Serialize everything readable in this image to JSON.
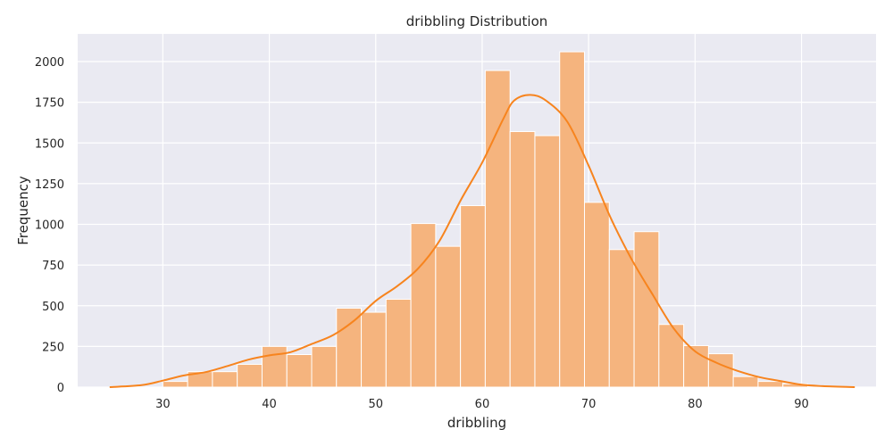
{
  "chart_data": {
    "type": "bar",
    "title": "dribbling Distribution",
    "xlabel": "dribbling",
    "ylabel": "Frequency",
    "xlim": [
      22,
      97
    ],
    "ylim": [
      0,
      2170
    ],
    "x_ticks": [
      30,
      40,
      50,
      60,
      70,
      80,
      90
    ],
    "y_ticks": [
      0,
      250,
      500,
      750,
      1000,
      1250,
      1500,
      1750,
      2000
    ],
    "grid": true,
    "bin_start": 30,
    "bin_width": 2.33,
    "values": [
      35,
      95,
      95,
      140,
      250,
      200,
      250,
      485,
      460,
      540,
      1005,
      865,
      1115,
      1945,
      1570,
      1545,
      2060,
      1135,
      845,
      955,
      385,
      255,
      205,
      65,
      35,
      20
    ],
    "kde": {
      "x": [
        25,
        28,
        30,
        32,
        34,
        36,
        38,
        40,
        42,
        44,
        46,
        48,
        50,
        52,
        54,
        56,
        58,
        60,
        62,
        63,
        64.5,
        66,
        68,
        70,
        72,
        74,
        76,
        78,
        80,
        82,
        84,
        86,
        88,
        90,
        92,
        95
      ],
      "y": [
        0,
        12,
        40,
        72,
        92,
        128,
        168,
        195,
        215,
        265,
        320,
        410,
        530,
        620,
        730,
        900,
        1150,
        1380,
        1650,
        1760,
        1795,
        1760,
        1630,
        1360,
        1050,
        790,
        570,
        360,
        220,
        150,
        100,
        62,
        38,
        15,
        6,
        0
      ]
    },
    "bar_color": "#f5b47e",
    "line_color": "#f7841e",
    "background_color": "#eaeaf2"
  }
}
